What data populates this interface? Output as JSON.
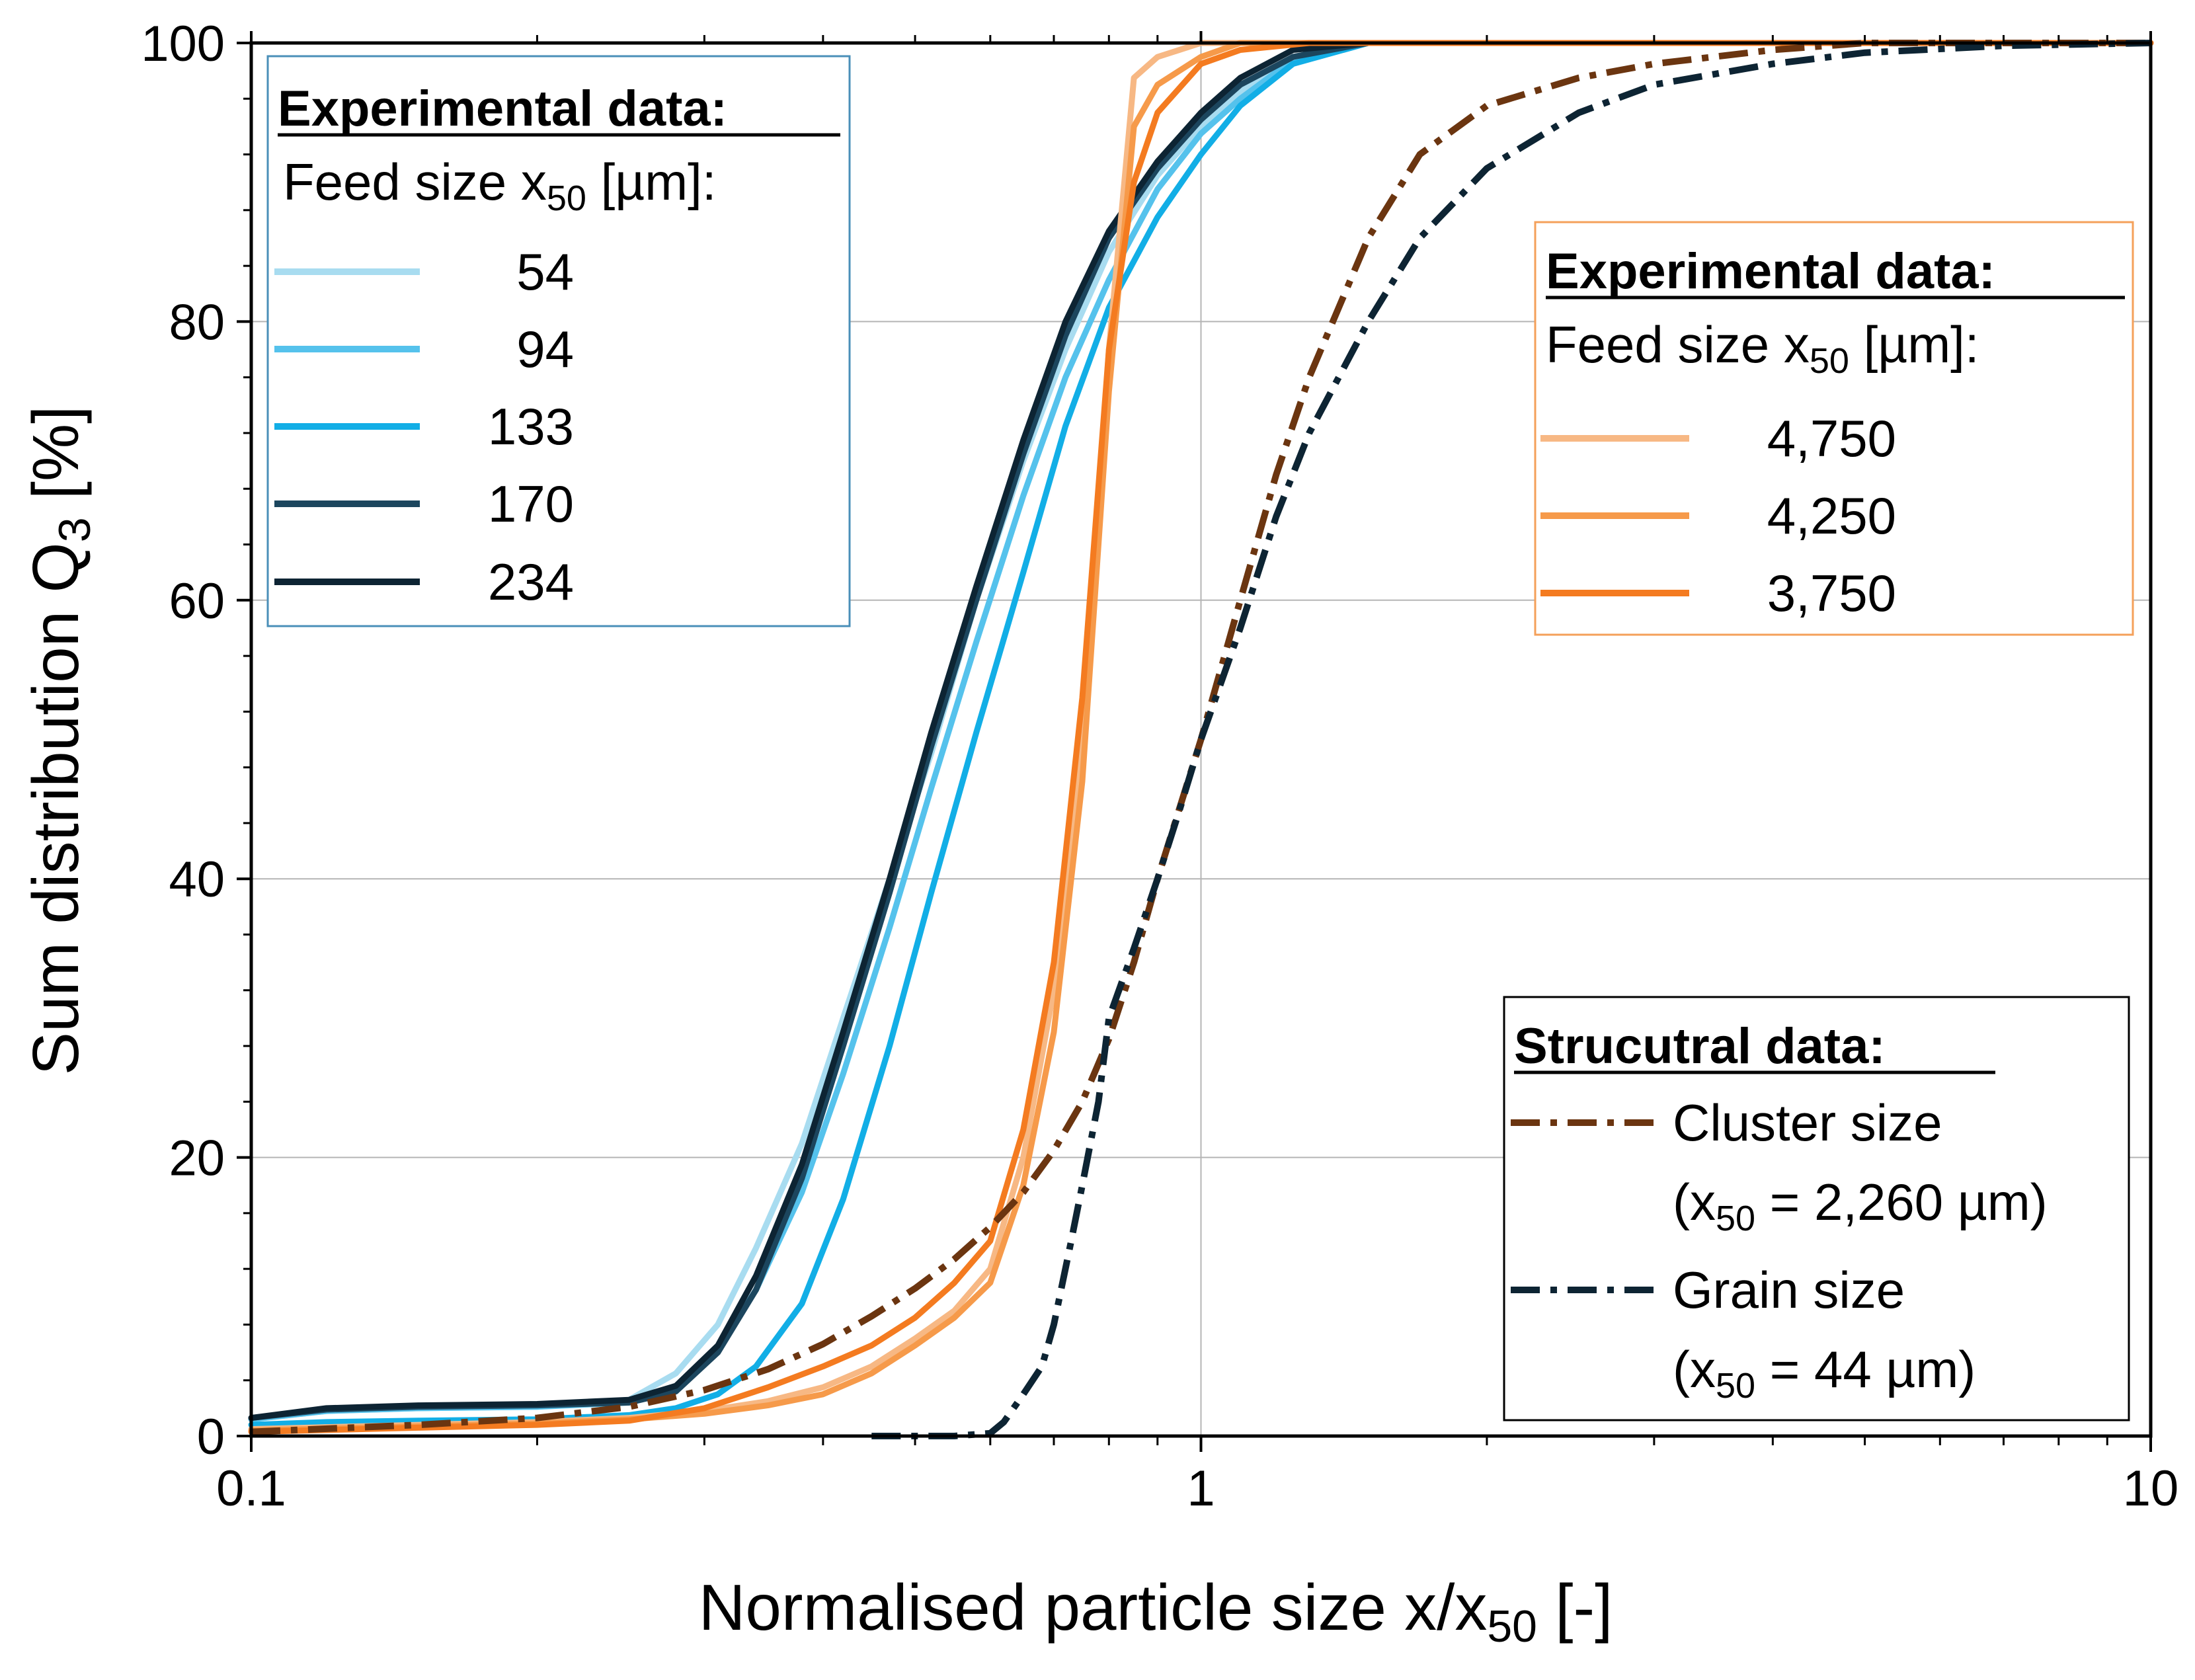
{
  "chart_data": {
    "type": "line",
    "title": "",
    "xlabel_main": "Normalised particle size x/x",
    "xlabel_sub": "50",
    "xlabel_tail": " [-]",
    "ylabel_main": "Sum distribution Q",
    "ylabel_sub": "3",
    "ylabel_tail": " [%]",
    "x_scale": "log",
    "xlim": [
      0.1,
      10
    ],
    "ylim": [
      0,
      100
    ],
    "grid": true,
    "x_major_ticks": [
      0.1,
      1,
      10
    ],
    "x_tick_labels": [
      "0.1",
      "1",
      "10"
    ],
    "y_major_ticks": [
      0,
      20,
      40,
      60,
      80,
      100
    ],
    "y_tick_labels": [
      "0",
      "20",
      "40",
      "60",
      "80",
      "100"
    ],
    "series": [
      {
        "name": "54",
        "group": "exp_fine",
        "color": "#a8dcf0",
        "dash": "solid",
        "x": [
          0.1,
          0.12,
          0.15,
          0.2,
          0.25,
          0.28,
          0.31,
          0.34,
          0.38,
          0.42,
          0.47,
          0.52,
          0.58,
          0.65,
          0.72,
          0.8,
          0.9,
          1.0,
          1.1,
          1.25,
          1.5,
          10
        ],
        "y": [
          1.2,
          1.8,
          2.0,
          2.1,
          2.6,
          4.5,
          8,
          13.5,
          21,
          30,
          40,
          49,
          60,
          70,
          78,
          85,
          90.5,
          94,
          96.5,
          99,
          100,
          100
        ]
      },
      {
        "name": "94",
        "group": "exp_fine",
        "color": "#55c2ec",
        "dash": "solid",
        "x": [
          0.1,
          0.12,
          0.15,
          0.2,
          0.25,
          0.28,
          0.31,
          0.34,
          0.38,
          0.42,
          0.47,
          0.52,
          0.58,
          0.65,
          0.72,
          0.8,
          0.9,
          1.0,
          1.1,
          1.25,
          1.5,
          10
        ],
        "y": [
          1.2,
          1.8,
          2.0,
          2.1,
          2.4,
          3.6,
          6.2,
          10.5,
          17.5,
          26,
          36.5,
          46.5,
          57,
          67.5,
          76,
          83,
          89.5,
          93.5,
          96,
          98.8,
          100,
          100
        ]
      },
      {
        "name": "133",
        "group": "exp_fine",
        "color": "#12aee6",
        "dash": "solid",
        "x": [
          0.1,
          0.12,
          0.15,
          0.2,
          0.25,
          0.28,
          0.31,
          0.34,
          0.38,
          0.42,
          0.47,
          0.52,
          0.58,
          0.65,
          0.72,
          0.8,
          0.9,
          1.0,
          1.1,
          1.25,
          1.5,
          10
        ],
        "y": [
          0.8,
          1.0,
          1.1,
          1.2,
          1.5,
          2.0,
          3.0,
          5.0,
          9.5,
          17,
          28,
          39,
          50.5,
          62,
          72.5,
          81,
          87.5,
          92,
          95.5,
          98.5,
          100,
          100
        ]
      },
      {
        "name": "170",
        "group": "exp_fine",
        "color": "#1c465e",
        "dash": "solid",
        "x": [
          0.1,
          0.12,
          0.15,
          0.2,
          0.25,
          0.28,
          0.31,
          0.34,
          0.38,
          0.42,
          0.47,
          0.52,
          0.58,
          0.65,
          0.72,
          0.8,
          0.9,
          1.0,
          1.1,
          1.25,
          1.5,
          10
        ],
        "y": [
          1.3,
          1.9,
          2.1,
          2.2,
          2.4,
          3.2,
          6.0,
          10.5,
          18.5,
          28,
          39,
          49.5,
          60,
          70.5,
          79,
          86,
          91,
          94.5,
          97,
          99,
          100,
          100
        ]
      },
      {
        "name": "234",
        "group": "exp_fine",
        "color": "#0d2433",
        "dash": "solid",
        "x": [
          0.1,
          0.12,
          0.15,
          0.2,
          0.25,
          0.28,
          0.31,
          0.34,
          0.38,
          0.42,
          0.47,
          0.52,
          0.58,
          0.65,
          0.72,
          0.8,
          0.9,
          1.0,
          1.1,
          1.25,
          1.5,
          10
        ],
        "y": [
          1.3,
          2.0,
          2.2,
          2.3,
          2.6,
          3.6,
          6.5,
          11.5,
          19.5,
          29,
          40,
          50.5,
          61,
          71.5,
          80,
          86.5,
          91.5,
          95,
          97.5,
          99.5,
          100,
          100
        ]
      },
      {
        "name": "4,750",
        "group": "exp_coarse",
        "color": "#f7b884",
        "dash": "solid",
        "x": [
          0.1,
          0.15,
          0.2,
          0.25,
          0.3,
          0.35,
          0.4,
          0.45,
          0.5,
          0.55,
          0.6,
          0.65,
          0.7,
          0.75,
          0.8,
          0.85,
          0.9,
          1.0,
          1.1,
          1.3,
          10
        ],
        "y": [
          0.5,
          0.8,
          1.0,
          1.3,
          1.8,
          2.5,
          3.5,
          5.0,
          7.0,
          9.0,
          12.0,
          20.0,
          32.0,
          50.0,
          78.0,
          97.5,
          99.0,
          100,
          100,
          100,
          100
        ]
      },
      {
        "name": "4,250",
        "group": "exp_coarse",
        "color": "#f69a4a",
        "dash": "solid",
        "x": [
          0.1,
          0.15,
          0.2,
          0.25,
          0.3,
          0.35,
          0.4,
          0.45,
          0.5,
          0.55,
          0.6,
          0.65,
          0.7,
          0.75,
          0.8,
          0.85,
          0.9,
          1.0,
          1.1,
          1.3,
          10
        ],
        "y": [
          0.4,
          0.7,
          0.9,
          1.2,
          1.6,
          2.2,
          3.0,
          4.5,
          6.5,
          8.5,
          11.0,
          18.0,
          29.0,
          47.0,
          75.0,
          94.0,
          97.0,
          99.0,
          100,
          100,
          100
        ]
      },
      {
        "name": "3,750",
        "group": "exp_coarse",
        "color": "#f47b20",
        "dash": "solid",
        "x": [
          0.1,
          0.15,
          0.2,
          0.25,
          0.3,
          0.35,
          0.4,
          0.45,
          0.5,
          0.55,
          0.6,
          0.65,
          0.7,
          0.75,
          0.8,
          0.85,
          0.9,
          1.0,
          1.1,
          1.3,
          10
        ],
        "y": [
          0.3,
          0.6,
          0.8,
          1.1,
          2.0,
          3.5,
          5.0,
          6.5,
          8.5,
          11.0,
          14.0,
          22.0,
          34.0,
          53.0,
          78.0,
          90.0,
          95.0,
          98.5,
          99.5,
          100,
          100
        ]
      },
      {
        "name": "Cluster size",
        "group": "structural",
        "color": "#6b3510",
        "dash": "dashdot",
        "x": [
          0.1,
          0.15,
          0.2,
          0.25,
          0.3,
          0.35,
          0.4,
          0.45,
          0.5,
          0.55,
          0.6,
          0.65,
          0.7,
          0.75,
          0.8,
          0.85,
          0.9,
          1.0,
          1.1,
          1.2,
          1.3,
          1.5,
          1.7,
          2.0,
          2.5,
          3.0,
          4.0,
          5.0,
          10
        ],
        "y": [
          0.3,
          0.8,
          1.3,
          2.1,
          3.3,
          4.8,
          6.6,
          8.6,
          10.6,
          12.7,
          15.0,
          17.5,
          20.5,
          24.0,
          28.5,
          34.0,
          40.0,
          50.0,
          60.0,
          69.0,
          76.0,
          86.0,
          92.0,
          95.5,
          97.5,
          98.5,
          99.5,
          100,
          100
        ]
      },
      {
        "name": "Grain size",
        "group": "structural",
        "color": "#0d2433",
        "dash": "dashdot",
        "x": [
          0.45,
          0.55,
          0.6,
          0.62,
          0.65,
          0.68,
          0.7,
          0.73,
          0.75,
          0.78,
          0.8,
          0.85,
          0.9,
          0.95,
          1.0,
          1.1,
          1.2,
          1.3,
          1.5,
          1.7,
          2.0,
          2.5,
          3.0,
          4.0,
          5.0,
          7.0,
          10
        ],
        "y": [
          0,
          0,
          0.2,
          1.0,
          3.0,
          5.0,
          8.0,
          14.0,
          18.0,
          24.0,
          30.0,
          35.0,
          40.0,
          45.0,
          50.0,
          58.0,
          66.0,
          72.0,
          80.0,
          86.0,
          91.0,
          95.0,
          97.0,
          98.5,
          99.3,
          99.8,
          100
        ]
      }
    ],
    "legends": {
      "fine": {
        "title": "Experimental data:",
        "subtitle_main": "Feed size x",
        "subtitle_sub": "50",
        "subtitle_tail": " [µm]:",
        "entries": [
          "54",
          "94",
          "133",
          "170",
          "234"
        ],
        "placement": "top-left"
      },
      "coarse": {
        "title": "Experimental data:",
        "subtitle_main": "Feed size x",
        "subtitle_sub": "50",
        "subtitle_tail": " [µm]:",
        "entries": [
          "4,750",
          "4,250",
          "3,750"
        ],
        "placement": "upper-right"
      },
      "structural": {
        "title": "Strucutral data:",
        "entry1_label": "Cluster size",
        "entry1_detail_pre": "(x",
        "entry1_detail_sub": "50",
        "entry1_detail_tail": " = 2,260 µm)",
        "entry2_label": "Grain size",
        "entry2_detail_pre": "(x",
        "entry2_detail_sub": "50",
        "entry2_detail_tail": " = 44 µm)",
        "placement": "lower-right"
      }
    }
  }
}
